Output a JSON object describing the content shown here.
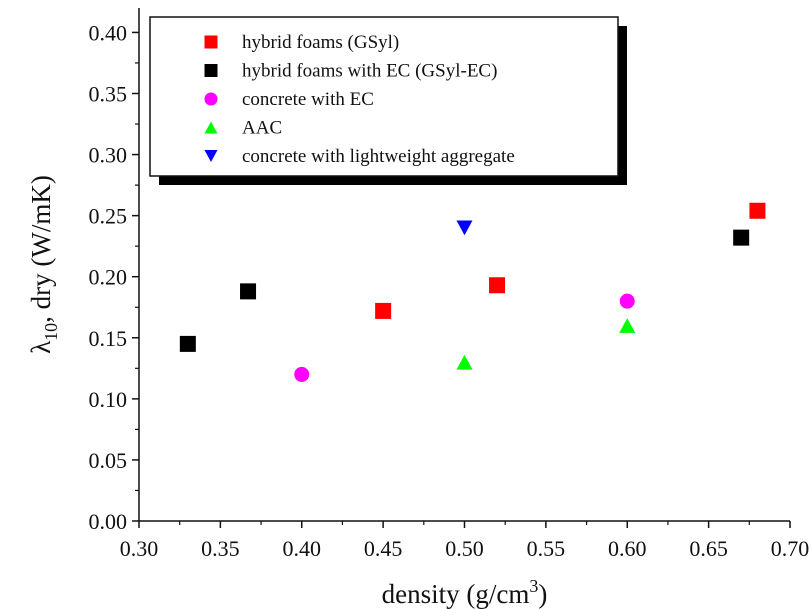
{
  "chart_data": {
    "type": "scatter",
    "title": "",
    "xlabel": {
      "main": "density (g/cm",
      "superscript": "3",
      "suffix": ")"
    },
    "ylabel": {
      "symbol": "λ",
      "subscript": "10",
      "rest": ", dry (W/mK)"
    },
    "xlim": [
      0.3,
      0.7
    ],
    "ylim": [
      0.0,
      0.42
    ],
    "x_ticks": [
      "0.30",
      "0.35",
      "0.40",
      "0.45",
      "0.50",
      "0.55",
      "0.60",
      "0.65",
      "0.70"
    ],
    "y_ticks": [
      "0.00",
      "0.05",
      "0.10",
      "0.15",
      "0.20",
      "0.25",
      "0.30",
      "0.35",
      "0.40"
    ],
    "grid": false,
    "legend_position": "top-left",
    "series": [
      {
        "name": "hybrid foams (GSyl)",
        "marker": "square",
        "color": "#ff0000",
        "points": [
          {
            "x": 0.45,
            "y": 0.172
          },
          {
            "x": 0.52,
            "y": 0.193
          },
          {
            "x": 0.68,
            "y": 0.254
          }
        ]
      },
      {
        "name": "hybrid foams with EC (GSyl-EC)",
        "marker": "square",
        "color": "#000000",
        "points": [
          {
            "x": 0.33,
            "y": 0.145
          },
          {
            "x": 0.367,
            "y": 0.188
          },
          {
            "x": 0.67,
            "y": 0.232
          }
        ]
      },
      {
        "name": "concrete with EC",
        "marker": "circle",
        "color": "#ff00ff",
        "points": [
          {
            "x": 0.4,
            "y": 0.12
          },
          {
            "x": 0.6,
            "y": 0.18
          }
        ]
      },
      {
        "name": "AAC",
        "marker": "triangle-up",
        "color": "#00ff00",
        "points": [
          {
            "x": 0.5,
            "y": 0.13
          },
          {
            "x": 0.6,
            "y": 0.16
          }
        ]
      },
      {
        "name": "concrete with lightweight aggregate",
        "marker": "triangle-down",
        "color": "#0000ff",
        "points": [
          {
            "x": 0.5,
            "y": 0.24
          }
        ]
      }
    ]
  }
}
